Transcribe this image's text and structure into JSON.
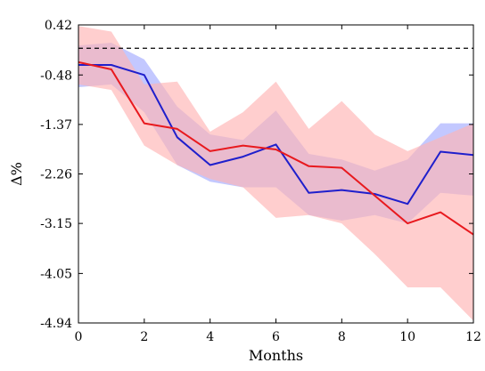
{
  "chart_data": {
    "type": "line",
    "xlabel": "Months",
    "ylabel": "Δ%",
    "xlim": [
      0,
      12
    ],
    "ylim": [
      -4.94,
      0.42
    ],
    "xticks": [
      0,
      2,
      4,
      6,
      8,
      10,
      12
    ],
    "yticks": [
      0.42,
      -0.48,
      -1.37,
      -2.26,
      -3.15,
      -4.05,
      -4.94
    ],
    "ytick_labels": [
      "0.42",
      "-0.48",
      "-1.37",
      "-2.26",
      "-3.15",
      "-4.05",
      "-4.94"
    ],
    "grid": false,
    "reference_line": {
      "y": 0,
      "style": "dashed",
      "color": "#000000"
    },
    "x": [
      0,
      1,
      2,
      3,
      4,
      5,
      6,
      7,
      8,
      9,
      10,
      11,
      12
    ],
    "series": [
      {
        "color": "#1f1fcc",
        "band_color": "#aab0ff",
        "values": [
          -0.3,
          -0.3,
          -0.48,
          -1.6,
          -2.1,
          -1.95,
          -1.73,
          -2.6,
          -2.55,
          -2.62,
          -2.8,
          -1.86,
          -1.92
        ],
        "band_upper": [
          0.05,
          0.1,
          -0.2,
          -1.05,
          -1.55,
          -1.65,
          -1.12,
          -1.9,
          -2.0,
          -2.2,
          -2.0,
          -1.35,
          -1.35
        ],
        "band_lower": [
          -0.7,
          -0.65,
          -1.15,
          -2.1,
          -2.4,
          -2.5,
          -2.5,
          -3.0,
          -3.1,
          -3.0,
          -3.15,
          -2.6,
          -2.65
        ]
      },
      {
        "color": "#e8191e",
        "band_color": "#ffb3b3",
        "values": [
          -0.25,
          -0.38,
          -1.35,
          -1.45,
          -1.85,
          -1.75,
          -1.82,
          -2.12,
          -2.15,
          -2.65,
          -3.15,
          -2.95,
          -3.35
        ],
        "band_upper": [
          0.4,
          0.3,
          -0.65,
          -0.6,
          -1.5,
          -1.15,
          -0.6,
          -1.45,
          -0.95,
          -1.55,
          -1.85,
          -1.6,
          -1.35
        ],
        "band_lower": [
          -0.65,
          -0.75,
          -1.75,
          -2.1,
          -2.35,
          -2.5,
          -3.05,
          -3.0,
          -3.15,
          -3.7,
          -4.3,
          -4.3,
          -4.9
        ]
      }
    ]
  }
}
